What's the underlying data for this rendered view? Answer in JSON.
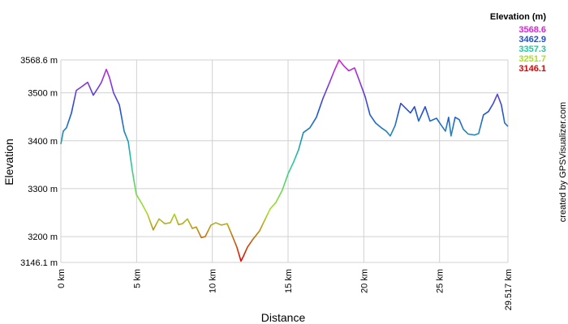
{
  "chart_data": {
    "type": "line",
    "xlabel": "Distance",
    "ylabel": "Elevation",
    "credit": "created by GPSVisualizer.com",
    "x": [
      0,
      0.16,
      0.37,
      0.7,
      1.02,
      1.34,
      1.77,
      2.14,
      2.41,
      2.68,
      3.0,
      3.21,
      3.48,
      3.86,
      4.18,
      4.45,
      4.71,
      4.98,
      5.36,
      5.73,
      6.1,
      6.48,
      6.86,
      7.23,
      7.5,
      7.77,
      8.03,
      8.36,
      8.68,
      8.94,
      9.27,
      9.53,
      9.91,
      10.23,
      10.6,
      10.98,
      11.3,
      11.62,
      11.89,
      12.05,
      12.32,
      12.69,
      13.12,
      13.5,
      13.82,
      14.19,
      14.62,
      15.0,
      15.37,
      15.69,
      16.01,
      16.44,
      16.87,
      17.3,
      17.68,
      18.05,
      18.37,
      18.69,
      19.01,
      19.39,
      19.71,
      20.09,
      20.41,
      20.78,
      21.16,
      21.48,
      21.75,
      22.07,
      22.44,
      22.76,
      23.08,
      23.35,
      23.62,
      24.05,
      24.37,
      24.8,
      25.12,
      25.39,
      25.6,
      25.76,
      26.03,
      26.3,
      26.57,
      26.89,
      27.32,
      27.58,
      27.9,
      28.23,
      28.55,
      28.82,
      29.08,
      29.3,
      29.517
    ],
    "values": [
      3393,
      3420,
      3427,
      3458,
      3505,
      3512,
      3522,
      3495,
      3508,
      3522,
      3549,
      3532,
      3500,
      3475,
      3420,
      3398,
      3339,
      3288,
      3268,
      3246,
      3214,
      3237,
      3227,
      3229,
      3247,
      3225,
      3227,
      3237,
      3217,
      3220,
      3198,
      3200,
      3224,
      3229,
      3224,
      3227,
      3203,
      3178,
      3149,
      3159,
      3178,
      3195,
      3212,
      3237,
      3258,
      3271,
      3297,
      3331,
      3356,
      3381,
      3417,
      3427,
      3449,
      3488,
      3517,
      3546,
      3568.6,
      3556,
      3546,
      3552,
      3525,
      3492,
      3454,
      3437,
      3427,
      3420,
      3410,
      3432,
      3478,
      3468,
      3458,
      3471,
      3441,
      3471,
      3441,
      3447,
      3432,
      3420,
      3449,
      3410,
      3449,
      3444,
      3424,
      3414,
      3412,
      3415,
      3454,
      3461,
      3478,
      3497,
      3475,
      3437,
      3430
    ],
    "xlim": [
      0,
      29.517
    ],
    "ylim": [
      3146.1,
      3568.6
    ],
    "xticks": [
      {
        "value": 0,
        "label": "0 km"
      },
      {
        "value": 5,
        "label": "5 km"
      },
      {
        "value": 10,
        "label": "10 km"
      },
      {
        "value": 15,
        "label": "15 km"
      },
      {
        "value": 20,
        "label": "20 km"
      },
      {
        "value": 25,
        "label": "25 km"
      },
      {
        "value": 29.517,
        "label": "29.517 km"
      }
    ],
    "yticks": [
      {
        "value": 3146.1,
        "label": "3146.1 m"
      },
      {
        "value": 3200,
        "label": "3200 m"
      },
      {
        "value": 3300,
        "label": "3300 m"
      },
      {
        "value": 3400,
        "label": "3400 m"
      },
      {
        "value": 3500,
        "label": "3500 m"
      },
      {
        "value": 3568.6,
        "label": "3568.6 m"
      }
    ],
    "grid": true,
    "legend": {
      "title": "Elevation (m)",
      "values": [
        3568.6,
        3462.9,
        3357.3,
        3251.7,
        3146.1
      ],
      "colors": [
        "#e020e0",
        "#2050d0",
        "#20c8a0",
        "#a8e020",
        "#e00000"
      ]
    }
  }
}
